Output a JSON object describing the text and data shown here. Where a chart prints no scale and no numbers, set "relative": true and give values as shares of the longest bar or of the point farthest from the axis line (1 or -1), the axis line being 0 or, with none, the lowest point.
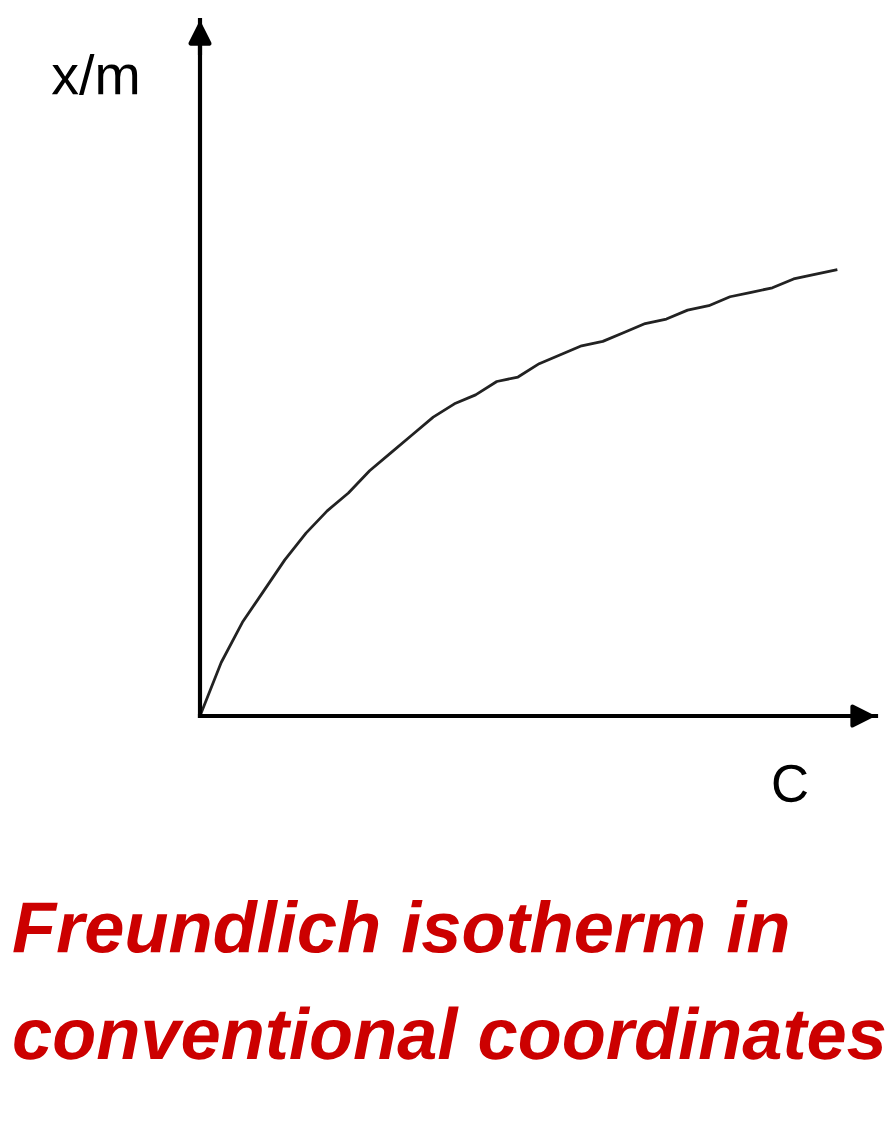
{
  "chart_data": {
    "type": "line",
    "title": "Freundlich isotherm in\nconventional coordinates",
    "xlabel": "C",
    "ylabel": "x/m",
    "relative": true,
    "line_style": "solid",
    "categories": [
      null,
      null,
      null,
      null,
      null,
      null,
      null,
      null,
      null,
      null,
      null,
      null,
      null,
      null,
      null,
      null,
      null,
      null,
      null,
      null,
      null,
      null,
      null,
      null,
      null,
      null,
      null,
      null,
      null,
      null,
      null
    ],
    "series": [
      {
        "color": "#222222",
        "values": [
          0,
          0.12,
          0.21,
          0.28,
          0.35,
          0.41,
          0.46,
          0.5,
          0.55,
          0.59,
          0.63,
          0.67,
          0.7,
          0.72,
          0.75,
          0.76,
          0.79,
          0.81,
          0.83,
          0.84,
          0.86,
          0.88,
          0.89,
          0.91,
          0.92,
          0.94,
          0.95,
          0.96,
          0.98,
          0.99,
          1
        ]
      }
    ]
  }
}
